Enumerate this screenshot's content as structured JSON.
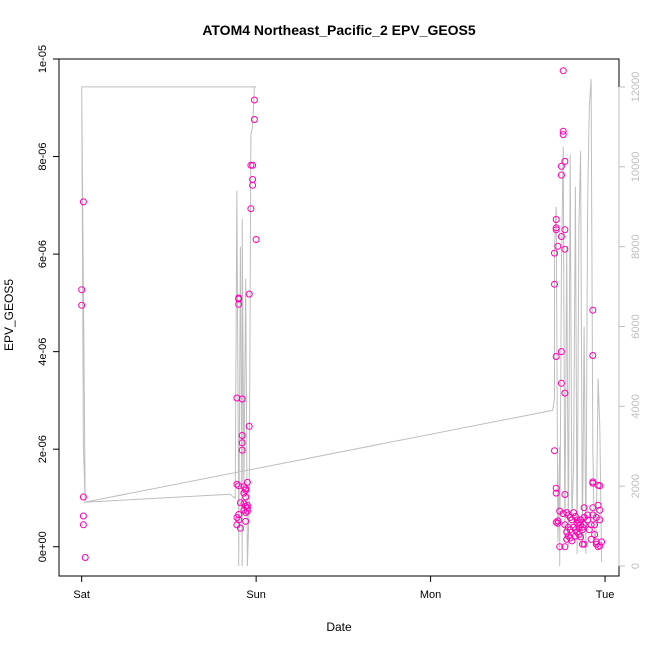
{
  "chart_data": {
    "type": "scatter",
    "title": "ATOM4 Northeast_Pacific_2 EPV_GEOS5",
    "xlabel": "Date",
    "ylabel": "EPV_GEOS5",
    "x_ticks": [
      {
        "day": 0,
        "label": "Sat"
      },
      {
        "day": 1,
        "label": "Sun"
      },
      {
        "day": 2,
        "label": "Mon"
      },
      {
        "day": 3,
        "label": "Tue"
      }
    ],
    "xlim": [
      -0.13,
      3.08
    ],
    "ylim": [
      -6e-07,
      1e-05
    ],
    "y_ticks": [
      {
        "value": 0,
        "label": "0e+00"
      },
      {
        "value": 2e-06,
        "label": "2e-06"
      },
      {
        "value": 4e-06,
        "label": "4e-06"
      },
      {
        "value": 6e-06,
        "label": "6e-06"
      },
      {
        "value": 8e-06,
        "label": "8e-06"
      },
      {
        "value": 1e-05,
        "label": "1e-05"
      }
    ],
    "y2_ticks": [
      {
        "value": 0,
        "label": "0"
      },
      {
        "value": 2000,
        "label": "2000"
      },
      {
        "value": 4000,
        "label": "4000"
      },
      {
        "value": 6000,
        "label": "6000"
      },
      {
        "value": 8000,
        "label": "8000"
      },
      {
        "value": 10000,
        "label": "10000"
      },
      {
        "value": 12000,
        "label": "12000"
      }
    ],
    "y2lim": [
      -250,
      12700
    ],
    "colors": {
      "points": "#ff00b4",
      "line": "#bebebe",
      "axis": "#000000",
      "axis2": "#bebebe"
    },
    "series": [
      {
        "kind": "points",
        "points": [
          [
            0.01,
            7.07e-06
          ],
          [
            0.0,
            5.27e-06
          ],
          [
            0.0,
            4.95e-06
          ],
          [
            0.01,
            1.02e-06
          ],
          [
            0.01,
            6.3e-07
          ],
          [
            0.01,
            4.5e-07
          ],
          [
            0.02,
            -2.2e-07
          ],
          [
            0.89,
            3.05e-06
          ],
          [
            0.9,
            5.08e-06
          ],
          [
            0.9,
            5.1e-06
          ],
          [
            0.9,
            4.97e-06
          ],
          [
            0.92,
            3.03e-06
          ],
          [
            0.92,
            2.28e-06
          ],
          [
            0.92,
            2.13e-06
          ],
          [
            0.92,
            1.98e-06
          ],
          [
            0.89,
            1.28e-06
          ],
          [
            0.9,
            1.25e-06
          ],
          [
            0.91,
            9e-07
          ],
          [
            0.9,
            6.6e-07
          ],
          [
            0.89,
            6e-07
          ],
          [
            0.9,
            5.5e-07
          ],
          [
            0.89,
            4.5e-07
          ],
          [
            0.91,
            3.8e-07
          ],
          [
            0.93,
            1.23e-06
          ],
          [
            0.94,
            1.19e-06
          ],
          [
            0.94,
            1.16e-06
          ],
          [
            0.93,
            1.1e-06
          ],
          [
            0.95,
            1.32e-06
          ],
          [
            0.94,
            1.02e-06
          ],
          [
            0.93,
            8.8e-07
          ],
          [
            0.94,
            8.3e-07
          ],
          [
            0.95,
            8e-07
          ],
          [
            0.93,
            7.5e-07
          ],
          [
            0.94,
            7e-07
          ],
          [
            0.95,
            7.3e-07
          ],
          [
            0.94,
            5.2e-07
          ],
          [
            0.95,
            8.5e-07
          ],
          [
            0.96,
            2.47e-06
          ],
          [
            0.96,
            5.18e-06
          ],
          [
            0.97,
            6.93e-06
          ],
          [
            0.97,
            7.82e-06
          ],
          [
            0.98,
            7.82e-06
          ],
          [
            0.98,
            7.53e-06
          ],
          [
            0.98,
            7.41e-06
          ],
          [
            0.99,
            9.16e-06
          ],
          [
            0.99,
            8.76e-06
          ],
          [
            1.0,
            6.3e-06
          ],
          [
            2.71,
            1.97e-06
          ],
          [
            2.71,
            5.38e-06
          ],
          [
            2.71,
            6.02e-06
          ],
          [
            2.72,
            6.71e-06
          ],
          [
            2.72,
            6.54e-06
          ],
          [
            2.72,
            6.5e-06
          ],
          [
            2.73,
            6.16e-06
          ],
          [
            2.72,
            3.9e-06
          ],
          [
            2.72,
            1.2e-06
          ],
          [
            2.72,
            1.1e-06
          ],
          [
            2.73,
            5.3e-07
          ],
          [
            2.73,
            4.8e-07
          ],
          [
            2.74,
            0.0
          ],
          [
            2.72,
            5e-07
          ],
          [
            2.75,
            4e-06
          ],
          [
            2.75,
            3.35e-06
          ],
          [
            2.75,
            7.8e-06
          ],
          [
            2.75,
            7.62e-06
          ],
          [
            2.75,
            6.36e-06
          ],
          [
            2.76,
            8.52e-06
          ],
          [
            2.76,
            8.45e-06
          ],
          [
            2.76,
            9.76e-06
          ],
          [
            2.77,
            7.9e-06
          ],
          [
            2.77,
            6.5e-06
          ],
          [
            2.77,
            6.1e-06
          ],
          [
            2.77,
            3.15e-06
          ],
          [
            2.77,
            1.07e-06
          ],
          [
            2.74,
            7.3e-07
          ],
          [
            2.76,
            6.8e-07
          ],
          [
            2.78,
            7e-07
          ],
          [
            2.79,
            6.5e-07
          ],
          [
            2.8,
            6e-07
          ],
          [
            2.81,
            5.5e-07
          ],
          [
            2.77,
            4.5e-07
          ],
          [
            2.79,
            4e-07
          ],
          [
            2.8,
            3.5e-07
          ],
          [
            2.78,
            3e-07
          ],
          [
            2.79,
            2.2e-07
          ],
          [
            2.8,
            1.8e-07
          ],
          [
            2.78,
            1.5e-07
          ],
          [
            2.81,
            1.2e-07
          ],
          [
            2.77,
            0.0
          ],
          [
            2.82,
            7e-07
          ],
          [
            2.83,
            6.2e-07
          ],
          [
            2.84,
            5.5e-07
          ],
          [
            2.85,
            5e-07
          ],
          [
            2.86,
            4.5e-07
          ],
          [
            2.87,
            4e-07
          ],
          [
            2.83,
            3.5e-07
          ],
          [
            2.84,
            3e-07
          ],
          [
            2.85,
            2.5e-07
          ],
          [
            2.86,
            2e-07
          ],
          [
            2.82,
            4e-07
          ],
          [
            2.83,
            2.2e-07
          ],
          [
            2.84,
            4.8e-07
          ],
          [
            2.85,
            3.8e-07
          ],
          [
            2.86,
            5.5e-07
          ],
          [
            2.87,
            3.5e-07
          ],
          [
            2.88,
            4.5e-07
          ],
          [
            2.88,
            6e-07
          ],
          [
            2.88,
            8e-07
          ],
          [
            2.87,
            5e-08
          ],
          [
            2.88,
            5e-08
          ],
          [
            2.9,
            6.5e-07
          ],
          [
            2.9,
            5.5e-07
          ],
          [
            2.91,
            3.5e-07
          ],
          [
            2.92,
            4.5e-07
          ],
          [
            2.92,
            1.5e-07
          ],
          [
            2.93,
            4.85e-06
          ],
          [
            2.93,
            3.92e-06
          ],
          [
            2.93,
            1.33e-06
          ],
          [
            2.93,
            1.3e-06
          ],
          [
            2.93,
            8e-07
          ],
          [
            2.93,
            6.5e-07
          ],
          [
            2.94,
            4.5e-07
          ],
          [
            2.94,
            2.5e-07
          ],
          [
            2.95,
            5e-08
          ],
          [
            2.95,
            6e-07
          ],
          [
            2.96,
            8.5e-07
          ],
          [
            2.97,
            7.5e-07
          ],
          [
            2.97,
            5.5e-07
          ],
          [
            2.96,
            1.26e-06
          ],
          [
            2.97,
            1.25e-06
          ],
          [
            2.95,
            1e-07
          ],
          [
            2.96,
            0.0
          ],
          [
            2.97,
            2e-08
          ],
          [
            2.98,
            1e-07
          ]
        ]
      },
      {
        "kind": "line",
        "axis": "right",
        "points": [
          [
            0.0,
            12000
          ],
          [
            0.0,
            12000
          ],
          [
            0.01,
            3000
          ],
          [
            0.02,
            1600
          ],
          [
            0.03,
            1600
          ],
          [
            0.85,
            1800
          ],
          [
            0.88,
            1700
          ],
          [
            0.89,
            9400
          ],
          [
            0.9,
            1000
          ],
          [
            0.9,
            0
          ],
          [
            0.91,
            8000
          ],
          [
            0.92,
            0
          ],
          [
            0.92,
            8700
          ],
          [
            0.93,
            2000
          ],
          [
            0.94,
            7200
          ],
          [
            0.95,
            0
          ],
          [
            0.96,
            1500
          ],
          [
            0.97,
            10800
          ],
          [
            0.98,
            11000
          ],
          [
            0.99,
            12000
          ],
          [
            1.0,
            12000
          ],
          [
            0.0,
            12000
          ],
          [
            0.02,
            1600
          ],
          [
            2.7,
            3900
          ],
          [
            2.71,
            4200
          ],
          [
            2.71,
            8000
          ],
          [
            2.72,
            9000
          ],
          [
            2.73,
            600
          ],
          [
            2.74,
            3000
          ],
          [
            2.74,
            0
          ],
          [
            2.75,
            7400
          ],
          [
            2.76,
            10500
          ],
          [
            2.77,
            600
          ],
          [
            2.78,
            8000
          ],
          [
            2.79,
            500
          ],
          [
            2.8,
            10300
          ],
          [
            2.81,
            1200
          ],
          [
            2.82,
            2500
          ],
          [
            2.83,
            9500
          ],
          [
            2.84,
            300
          ],
          [
            2.85,
            8500
          ],
          [
            2.86,
            10400
          ],
          [
            2.87,
            500
          ],
          [
            2.88,
            6000
          ],
          [
            2.89,
            300
          ],
          [
            2.9,
            9000
          ],
          [
            2.91,
            11500
          ],
          [
            2.92,
            12200
          ],
          [
            2.93,
            3000
          ],
          [
            2.94,
            500
          ],
          [
            2.95,
            1000
          ],
          [
            2.96,
            4700
          ],
          [
            2.97,
            3500
          ],
          [
            2.98,
            100
          ]
        ]
      }
    ]
  }
}
